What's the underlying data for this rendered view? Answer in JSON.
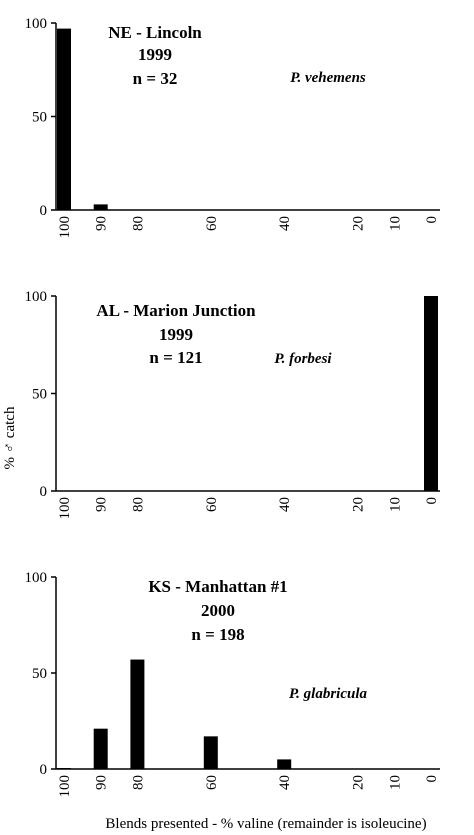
{
  "chart_data": {
    "type": "bar",
    "categories": [
      "100",
      "90",
      "80",
      "60",
      "40",
      "20",
      "10",
      "0"
    ],
    "category_values": [
      100,
      90,
      80,
      60,
      40,
      20,
      10,
      0
    ],
    "yticks": [
      "0",
      "50",
      "100"
    ],
    "ylim": [
      0,
      100
    ],
    "ylabel": "% ♂ catch",
    "xlabel": "Blends presented - % valine (remainder is isoleucine)",
    "panels": [
      {
        "site": "NE - Lincoln",
        "year": "1999",
        "n": "n = 32",
        "species": "P. vehemens",
        "values": [
          97,
          3,
          0,
          0,
          0,
          0,
          0,
          0
        ]
      },
      {
        "site": "AL - Marion Junction",
        "year": "1999",
        "n": "n = 121",
        "species": "P. forbesi",
        "values": [
          0,
          0,
          0,
          0,
          0,
          0,
          0,
          100
        ]
      },
      {
        "site": "KS - Manhattan #1",
        "year": "2000",
        "n": "n = 198",
        "species": "P. glabricula",
        "values": [
          0.5,
          21,
          57,
          17,
          5,
          0,
          0,
          0
        ]
      }
    ]
  }
}
